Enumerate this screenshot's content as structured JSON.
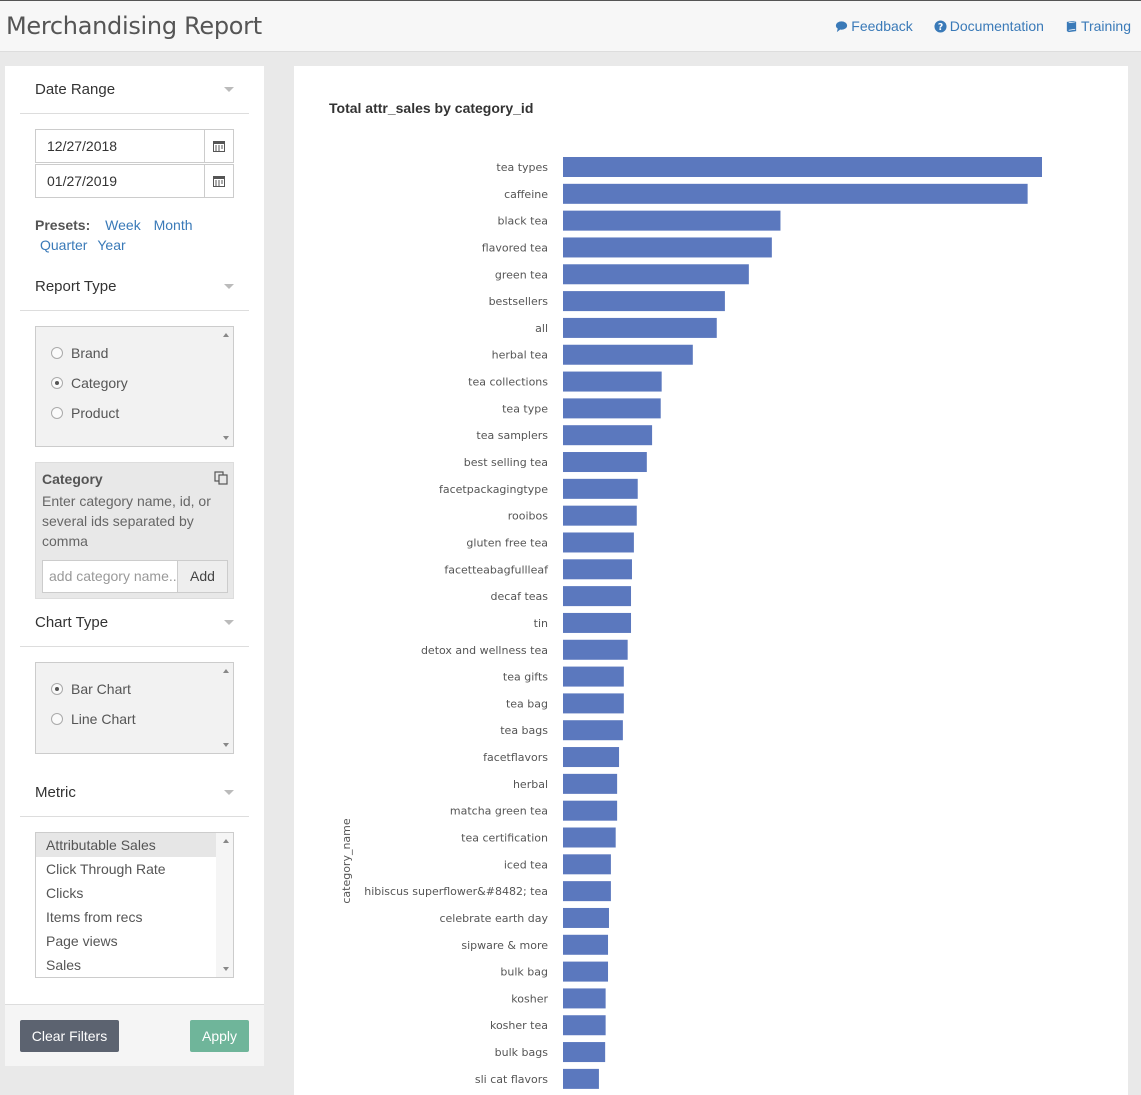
{
  "header": {
    "title": "Merchandising Report",
    "links": {
      "feedback": "Feedback",
      "documentation": "Documentation",
      "training": "Training"
    }
  },
  "sidebar": {
    "date_range": {
      "label": "Date Range",
      "start": "12/27/2018",
      "end": "01/27/2019",
      "presets_label": "Presets:",
      "presets": [
        "Week",
        "Month",
        "Quarter",
        "Year"
      ]
    },
    "report_type": {
      "label": "Report Type",
      "options": [
        "Brand",
        "Category",
        "Product"
      ],
      "selected": "Category"
    },
    "category": {
      "title": "Category",
      "help": "Enter category name, id, or several ids separated by comma",
      "placeholder": "add category name...",
      "add_label": "Add"
    },
    "chart_type": {
      "label": "Chart Type",
      "options": [
        "Bar Chart",
        "Line Chart"
      ],
      "selected": "Bar Chart"
    },
    "metric": {
      "label": "Metric",
      "options": [
        "Attributable Sales",
        "Click Through Rate",
        "Clicks",
        "Items from recs",
        "Page views",
        "Sales"
      ],
      "selected": "Attributable Sales"
    },
    "buttons": {
      "clear": "Clear Filters",
      "apply": "Apply"
    }
  },
  "chart_data": {
    "type": "bar",
    "orientation": "horizontal",
    "title": "Total attr_sales by category_id",
    "ylabel": "category_name",
    "xlabel": "",
    "bar_color": "#5b78be",
    "categories": [
      "tea types",
      "caffeine",
      "black tea",
      "flavored tea",
      "green tea",
      "bestsellers",
      "all",
      "herbal tea",
      "tea collections",
      "tea type",
      "tea samplers",
      "best selling tea",
      "facetpackagingtype",
      "rooibos",
      "gluten free tea",
      "facetteabagfullleaf",
      "decaf teas",
      "tin",
      "detox and wellness tea",
      "tea gifts",
      "tea bag",
      "tea bags",
      "facetflavors",
      "herbal",
      "matcha green tea",
      "tea certification",
      "iced tea",
      "hibiscus superflower&#8482; tea",
      "celebrate earth day",
      "sipware & more",
      "bulk bag",
      "kosher",
      "kosher tea",
      "bulk bags",
      "sli cat flavors"
    ],
    "values": [
      100,
      97,
      45.4,
      43.6,
      38.8,
      33.8,
      32.1,
      27.1,
      20.6,
      20.4,
      18.6,
      17.5,
      15.6,
      15.4,
      14.8,
      14.4,
      14.2,
      14.2,
      13.5,
      12.7,
      12.7,
      12.5,
      11.7,
      11.3,
      11.3,
      11.0,
      10.0,
      10.0,
      9.6,
      9.4,
      9.4,
      8.9,
      8.9,
      8.8,
      7.5
    ]
  }
}
